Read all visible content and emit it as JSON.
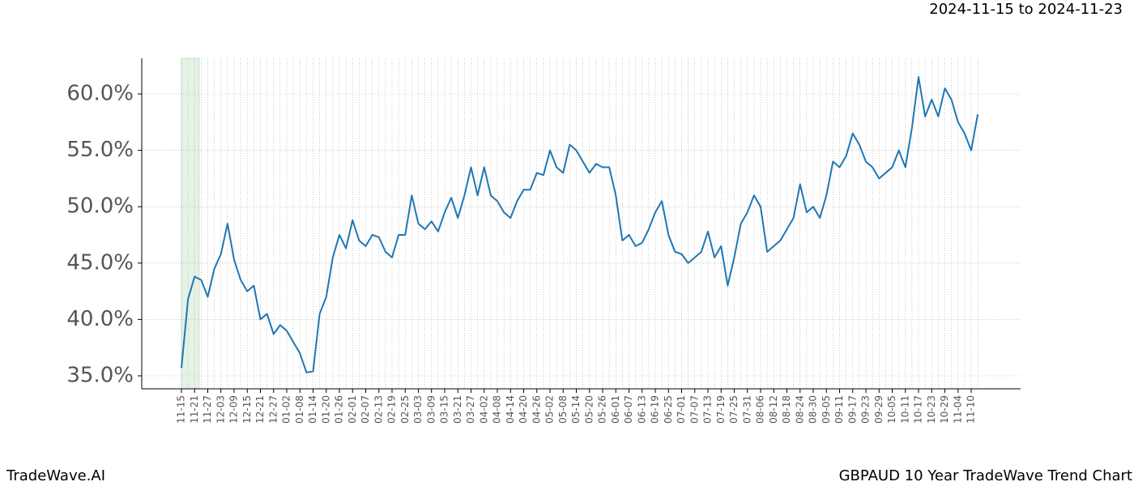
{
  "header": {
    "date_range": "2024-11-15 to 2024-11-23"
  },
  "footer": {
    "left": "TradeWave.AI",
    "right": "GBPAUD 10 Year TradeWave Trend Chart"
  },
  "chart_data": {
    "type": "line",
    "categories": [
      "11-15",
      null,
      "11-21",
      null,
      "11-27",
      null,
      "12-03",
      null,
      "12-09",
      null,
      "12-15",
      null,
      "12-21",
      null,
      "12-27",
      null,
      "01-02",
      null,
      "01-08",
      null,
      "01-14",
      null,
      "01-20",
      null,
      "01-26",
      null,
      "02-01",
      null,
      "02-07",
      null,
      "02-13",
      null,
      "02-19",
      null,
      "02-25",
      null,
      "03-03",
      null,
      "03-09",
      null,
      "03-15",
      null,
      "03-21",
      null,
      "03-27",
      null,
      "04-02",
      null,
      "04-08",
      null,
      "04-14",
      null,
      "04-20",
      null,
      "04-26",
      null,
      "05-02",
      null,
      "05-08",
      null,
      "05-14",
      null,
      "05-20",
      null,
      "05-26",
      null,
      "06-01",
      null,
      "06-07",
      null,
      "06-13",
      null,
      "06-19",
      null,
      "06-25",
      null,
      "07-01",
      null,
      "07-07",
      null,
      "07-13",
      null,
      "07-19",
      null,
      "07-25",
      null,
      "07-31",
      null,
      "08-06",
      null,
      "08-12",
      null,
      "08-18",
      null,
      "08-24",
      null,
      "08-30",
      null,
      "09-05",
      null,
      "09-11",
      null,
      "09-17",
      null,
      "09-23",
      null,
      "09-29",
      null,
      "10-05",
      null,
      "10-11",
      null,
      "10-17",
      null,
      "10-23",
      null,
      "10-29",
      null,
      "11-04",
      null,
      "11-10",
      null
    ],
    "series": [
      {
        "color": "#1f77b4",
        "values": [
          35.7,
          41.8,
          43.8,
          43.5,
          42.0,
          44.5,
          45.8,
          48.5,
          45.3,
          43.5,
          42.5,
          43.0,
          40.0,
          40.5,
          38.7,
          39.5,
          39.0,
          38.0,
          37.0,
          35.3,
          35.4,
          40.5,
          42.0,
          45.5,
          47.5,
          46.3,
          48.8,
          47.0,
          46.5,
          47.5,
          47.3,
          46.0,
          45.5,
          47.5,
          47.5,
          51.0,
          48.5,
          48.0,
          48.7,
          47.8,
          49.5,
          50.8,
          49.0,
          51.0,
          53.5,
          51.0,
          53.5,
          51.0,
          50.5,
          49.5,
          49.0,
          50.5,
          51.5,
          51.5,
          53.0,
          52.8,
          55.0,
          53.5,
          53.0,
          55.5,
          55.0,
          54.0,
          53.0,
          53.8,
          53.5,
          53.5,
          51.0,
          47.0,
          47.5,
          46.5,
          46.8,
          48.0,
          49.5,
          50.5,
          47.5,
          46.0,
          45.8,
          45.0,
          45.5,
          46.0,
          47.8,
          45.5,
          46.5,
          43.0,
          45.5,
          48.5,
          49.5,
          51.0,
          50.0,
          46.0,
          46.5,
          47.0,
          48.0,
          49.0,
          52.0,
          49.5,
          50.0,
          49.0,
          51.0,
          54.0,
          53.5,
          54.5,
          56.5,
          55.5,
          54.0,
          53.5,
          52.5,
          53.0,
          53.5,
          55.0,
          53.5,
          57.0,
          61.5,
          58.0,
          59.5,
          58.0,
          60.5,
          59.5,
          57.5,
          56.5,
          55.0,
          58.2
        ]
      }
    ],
    "ylim": [
      33.85,
      63.16
    ],
    "yticks": [
      {
        "value": 35,
        "label": "35.0%"
      },
      {
        "value": 40,
        "label": "40.0%"
      },
      {
        "value": 45,
        "label": "45.0%"
      },
      {
        "value": 50,
        "label": "50.0%"
      },
      {
        "value": 55,
        "label": "55.0%"
      },
      {
        "value": 60,
        "label": "60.0%"
      }
    ],
    "grid": true,
    "highlight": {
      "span": [
        0,
        2.7
      ],
      "color": "#e6f2e6"
    }
  }
}
